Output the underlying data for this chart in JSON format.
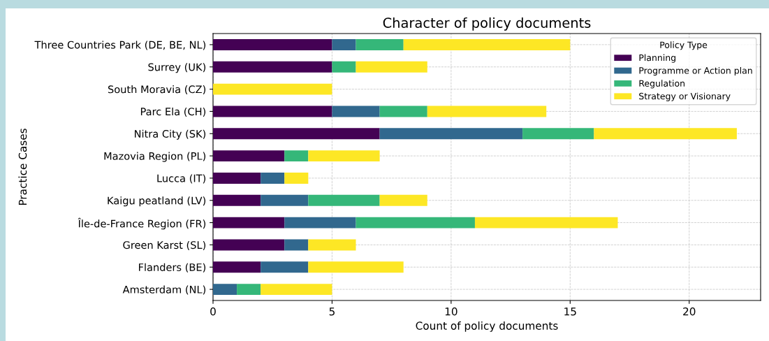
{
  "chart_data": {
    "type": "bar",
    "orientation": "horizontal",
    "stacked": true,
    "title": "Character of policy documents",
    "xlabel": "Count of policy documents",
    "ylabel": "Practice Cases",
    "legend_title": "Policy Type",
    "legend": "top right",
    "grid": true,
    "categories": [
      "Three Countries Park (DE, BE, NL)",
      "Surrey (UK)",
      "South Moravia (CZ)",
      "Parc Ela (CH)",
      "Nitra City (SK)",
      "Mazovia Region (PL)",
      "Lucca (IT)",
      "Kaigu peatland (LV)",
      "Île-de-France Region (FR)",
      "Green Karst (SL)",
      "Flanders (BE)",
      "Amsterdam (NL)"
    ],
    "xlim": [
      0,
      23
    ],
    "xticks": [
      0,
      5,
      10,
      15,
      20
    ],
    "series": [
      {
        "name": "Planning",
        "color": "#440154",
        "values": [
          5,
          5,
          0,
          5,
          7,
          3,
          2,
          2,
          3,
          3,
          2,
          0
        ]
      },
      {
        "name": "Programme or Action plan",
        "color": "#31688e",
        "values": [
          1,
          0,
          0,
          2,
          6,
          0,
          1,
          2,
          3,
          1,
          2,
          1
        ]
      },
      {
        "name": "Regulation",
        "color": "#35b779",
        "values": [
          2,
          1,
          0,
          2,
          3,
          1,
          0,
          3,
          5,
          0,
          0,
          1
        ]
      },
      {
        "name": "Strategy or Visionary",
        "color": "#fde725",
        "values": [
          7,
          3,
          5,
          5,
          6,
          3,
          1,
          2,
          6,
          2,
          4,
          3
        ]
      }
    ]
  }
}
